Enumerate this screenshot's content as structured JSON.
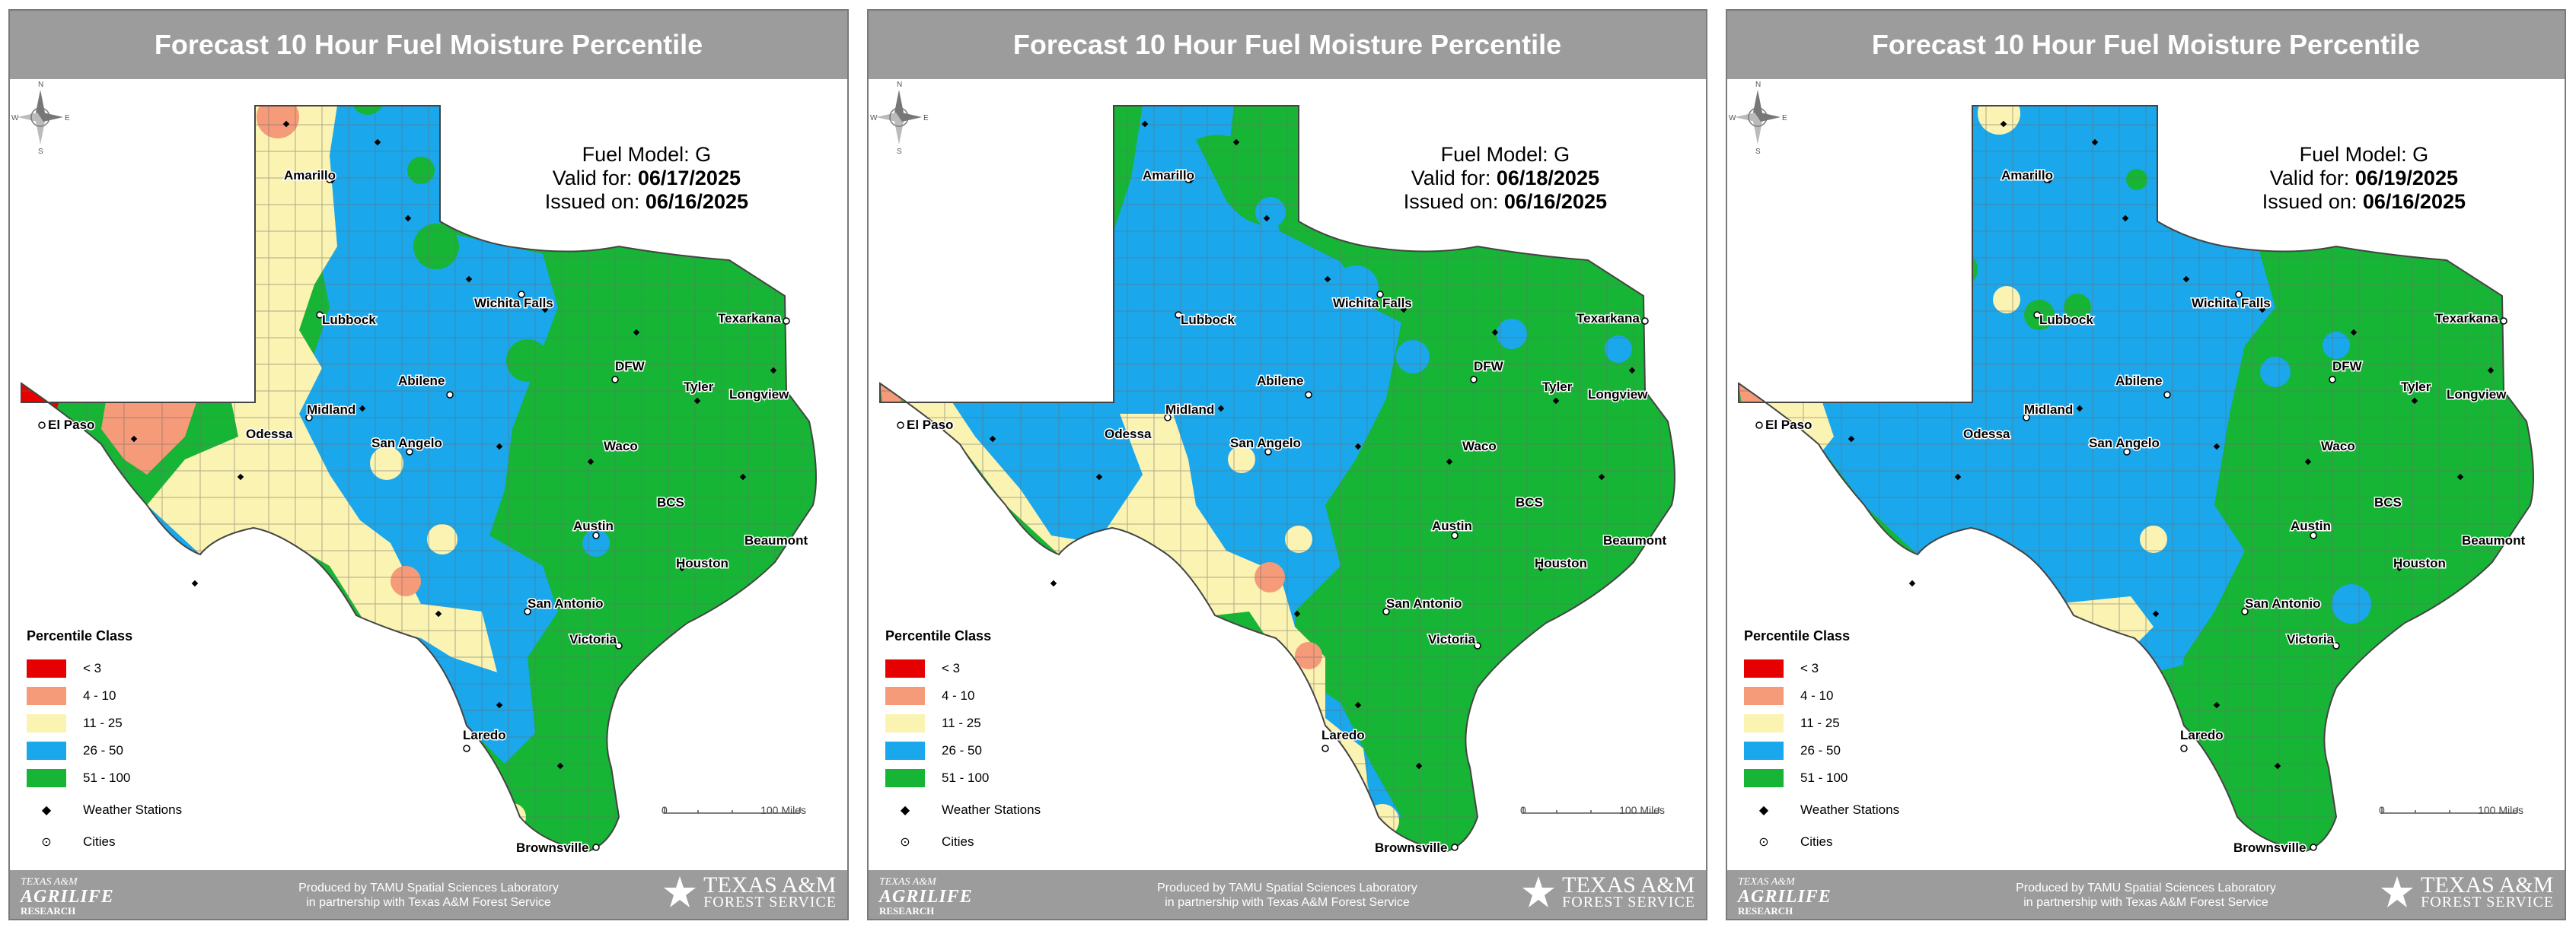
{
  "colors": {
    "lt3": "#e60000",
    "c4_10": "#f59b7a",
    "c11_25": "#fbf3b2",
    "c26_50": "#1aa7ec",
    "c51_100": "#17b535",
    "header_bg": "#9c9c9c"
  },
  "panels": [
    {
      "title": "Forecast 10 Hour Fuel Moisture Percentile",
      "fuel_model": "Fuel Model: G",
      "valid_label": "Valid for: ",
      "valid_date": "06/17/2025",
      "issued_label": "Issued on: ",
      "issued_date": "06/16/2025"
    },
    {
      "title": "Forecast 10 Hour Fuel Moisture Percentile",
      "fuel_model": "Fuel Model: G",
      "valid_label": "Valid for: ",
      "valid_date": "06/18/2025",
      "issued_label": "Issued on: ",
      "issued_date": "06/16/2025"
    },
    {
      "title": "Forecast 10 Hour Fuel Moisture Percentile",
      "fuel_model": "Fuel Model: G",
      "valid_label": "Valid for: ",
      "valid_date": "06/19/2025",
      "issued_label": "Issued on: ",
      "issued_date": "06/16/2025"
    }
  ],
  "legend": {
    "title": "Percentile Class",
    "classes": [
      {
        "label": "< 3",
        "color_key": "lt3"
      },
      {
        "label": "4 - 10",
        "color_key": "c4_10"
      },
      {
        "label": "11 - 25",
        "color_key": "c11_25"
      },
      {
        "label": "26 - 50",
        "color_key": "c26_50"
      },
      {
        "label": "51 - 100",
        "color_key": "c51_100"
      }
    ],
    "weather_stations": "Weather Stations",
    "cities": "Cities"
  },
  "cities": [
    "Amarillo",
    "Lubbock",
    "Wichita Falls",
    "Texarkana",
    "DFW",
    "Tyler",
    "Longview",
    "Abilene",
    "Midland",
    "Odessa",
    "El Paso",
    "San Angelo",
    "Waco",
    "BCS",
    "Austin",
    "Beaumont",
    "Houston",
    "San Antonio",
    "Victoria",
    "Laredo",
    "Brownsville"
  ],
  "north_arrow": {
    "n": "N",
    "s": "S",
    "e": "E",
    "w": "W"
  },
  "scale": {
    "start": "0",
    "end": "100 Miles"
  },
  "footer": {
    "left_line1": "TEXAS A&M",
    "left_line2": "AGRILIFE",
    "left_line3": "RESEARCH",
    "mid_line1": "Produced by TAMU Spatial Sciences Laboratory",
    "mid_line2": "in partnership with Texas A&M Forest Service",
    "right_line1": "TEXAS A&M",
    "right_line2": "FOREST SERVICE"
  }
}
